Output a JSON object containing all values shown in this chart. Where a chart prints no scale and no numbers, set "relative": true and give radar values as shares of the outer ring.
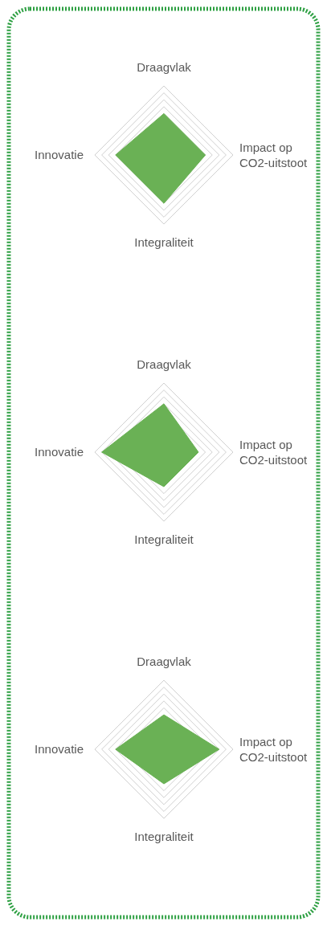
{
  "chart_data": [
    {
      "type": "radar",
      "categories": [
        "Draagvlak",
        "Impact op CO2-uitstoot",
        "Integraliteit",
        "Innovatie"
      ],
      "relative": true,
      "grid": true,
      "series": [
        {
          "color": "#6ab155",
          "values": [
            0.6,
            0.6,
            0.7,
            0.7
          ]
        }
      ]
    },
    {
      "type": "radar",
      "categories": [
        "Draagvlak",
        "Impact op CO2-uitstoot",
        "Integraliteit",
        "Innovatie"
      ],
      "relative": true,
      "grid": true,
      "series": [
        {
          "color": "#6ab155",
          "values": [
            0.7,
            0.5,
            0.5,
            0.9
          ]
        }
      ]
    },
    {
      "type": "radar",
      "categories": [
        "Draagvlak",
        "Impact op CO2-uitstoot",
        "Integraliteit",
        "Innovatie"
      ],
      "relative": true,
      "grid": true,
      "series": [
        {
          "color": "#6ab155",
          "values": [
            0.5,
            0.8,
            0.5,
            0.7
          ]
        }
      ]
    }
  ]
}
